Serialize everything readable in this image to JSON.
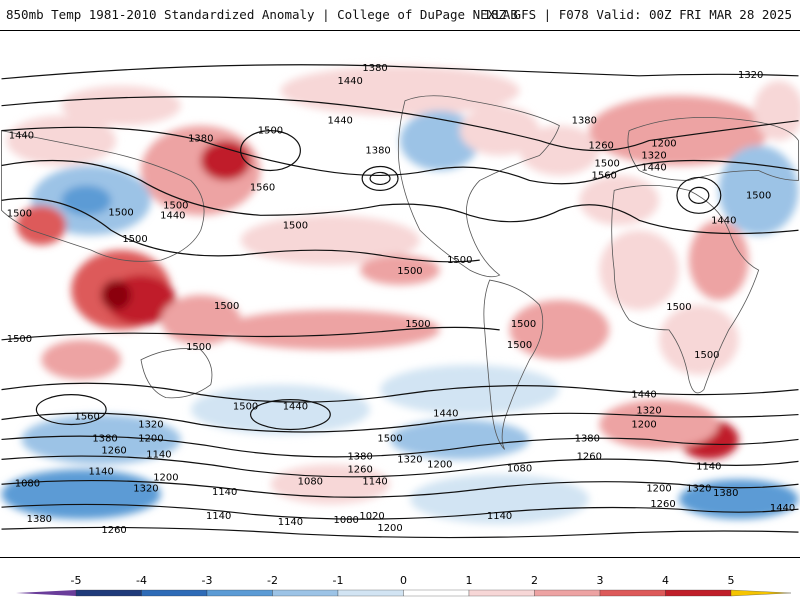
{
  "header": {
    "left_title": "850mb Temp 1981-2010 Standardized Anomaly | College of DuPage NEXLAB",
    "right_title": "18Z GFS | F078 Valid: 00Z FRI MAR 28 2025"
  },
  "colorbar": {
    "ticks": [
      "-5",
      "-4",
      "-3",
      "-2",
      "-1",
      "0",
      "1",
      "2",
      "3",
      "4",
      "5"
    ],
    "colors": {
      "lt5": "#6a3d9a",
      "n5": "#1f3a7a",
      "n4": "#2e6bb7",
      "n3": "#5b9bd5",
      "n2": "#9cc3e6",
      "n1": "#d2e4f3",
      "zero": "#ffffff",
      "p1": "#f7d7d7",
      "p2": "#eda3a3",
      "p3": "#dd5a5a",
      "p4": "#c01f2a",
      "p5": "#8b0010",
      "gt5": "#f5c400"
    }
  },
  "contour_labels": [
    "1380",
    "1440",
    "1320",
    "1440",
    "1380",
    "1500",
    "1380",
    "1440",
    "1380",
    "1260",
    "1200",
    "1320",
    "1440",
    "1500",
    "1560",
    "1500",
    "1440",
    "1500",
    "1500",
    "1500",
    "1560",
    "1500",
    "1440",
    "1500",
    "1500",
    "1500",
    "1500",
    "1500",
    "1500",
    "1500",
    "1500",
    "1500",
    "1500",
    "1500",
    "1440",
    "1500",
    "1440",
    "1320",
    "1200",
    "1560",
    "1320",
    "1380",
    "1200",
    "1260",
    "1140",
    "1500",
    "1440",
    "1380",
    "1320",
    "1380",
    "1260",
    "1200",
    "1260",
    "1140",
    "1140",
    "1080",
    "1200",
    "1320",
    "1080",
    "1140",
    "1080",
    "1200",
    "1320",
    "1140",
    "1260",
    "1380",
    "1260",
    "1140",
    "1140",
    "1080",
    "1020",
    "1200",
    "1140",
    "1380",
    "1440"
  ]
}
